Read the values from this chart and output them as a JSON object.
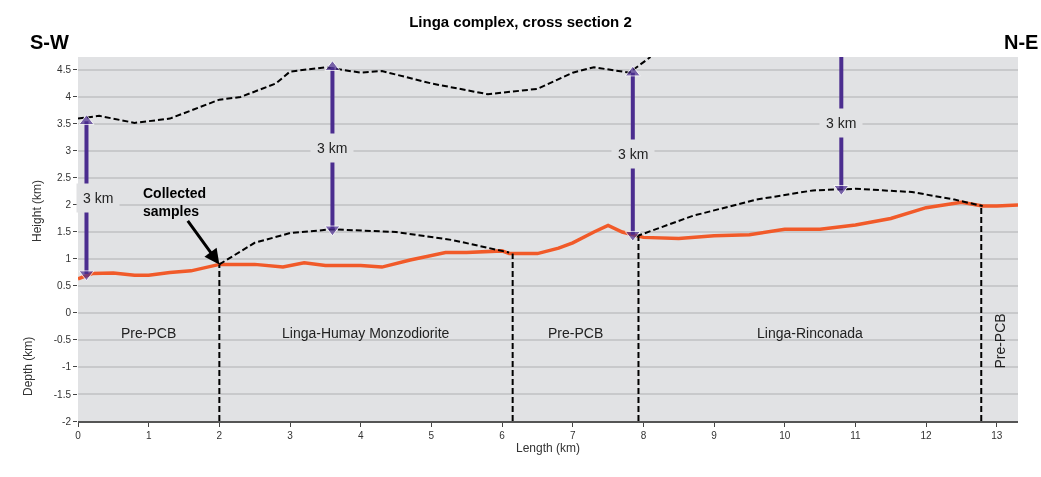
{
  "chart_data": {
    "type": "line",
    "title": "Linga complex, cross section 2",
    "xlabel": "Length (km)",
    "ylabel": "Height (km)",
    "xlim": [
      0,
      13.3
    ],
    "xticks": [
      0,
      1,
      2,
      3,
      4,
      5,
      6,
      7,
      8,
      9,
      10,
      11,
      12,
      13
    ],
    "ylim": [
      -2,
      4.74
    ],
    "yticks": [
      -2,
      -1.5,
      -1,
      -0.5,
      0,
      0.5,
      1,
      1.5,
      2,
      2.5,
      3,
      3.5,
      4,
      4.5
    ],
    "grid": "y",
    "legend": false,
    "series": [
      {
        "color": "#f15a29",
        "line_style": "solid",
        "x": [
          0,
          0.2,
          0.5,
          0.8,
          1.0,
          1.3,
          1.6,
          2.0,
          2.5,
          2.9,
          3.2,
          3.5,
          4.0,
          4.3,
          4.7,
          5.2,
          5.5,
          6.0,
          6.1,
          6.5,
          6.8,
          7.0,
          7.3,
          7.5,
          7.7,
          8.0,
          8.5,
          9.0,
          9.5,
          10.0,
          10.5,
          11.0,
          11.5,
          12.0,
          12.5,
          12.8,
          13.0,
          13.3
        ],
        "values": [
          0.63,
          0.73,
          0.74,
          0.7,
          0.7,
          0.75,
          0.78,
          0.9,
          0.9,
          0.85,
          0.93,
          0.88,
          0.88,
          0.85,
          0.98,
          1.12,
          1.12,
          1.15,
          1.1,
          1.1,
          1.2,
          1.3,
          1.5,
          1.62,
          1.5,
          1.4,
          1.38,
          1.43,
          1.45,
          1.55,
          1.55,
          1.63,
          1.75,
          1.95,
          2.05,
          1.98,
          1.98,
          2.0
        ]
      },
      {
        "color": "#000000",
        "line_style": "dashed",
        "x": [
          0,
          0.3,
          0.8,
          1.3,
          2.0,
          2.3,
          2.8,
          3.0,
          3.5,
          4.0,
          4.3,
          5.0,
          5.8,
          6.5,
          7.0,
          7.3,
          7.8,
          8.1
        ],
        "values": [
          3.6,
          3.65,
          3.52,
          3.6,
          3.95,
          4.0,
          4.25,
          4.47,
          4.55,
          4.45,
          4.48,
          4.25,
          4.05,
          4.15,
          4.45,
          4.55,
          4.45,
          4.74
        ]
      },
      {
        "color": "#000000",
        "line_style": "dashed",
        "x": [
          2.0,
          2.5,
          3.0,
          3.6,
          4.5,
          5.3,
          6.1
        ],
        "values": [
          0.9,
          1.3,
          1.48,
          1.55,
          1.5,
          1.35,
          1.12
        ]
      },
      {
        "color": "#000000",
        "line_style": "dashed",
        "x": [
          7.9,
          8.7,
          9.6,
          10.4,
          11.0,
          11.8,
          12.4,
          12.8
        ],
        "values": [
          1.42,
          1.8,
          2.1,
          2.27,
          2.3,
          2.24,
          2.1,
          1.98
        ]
      },
      {
        "color": "#000000",
        "line_style": "dashed",
        "x": [
          2.0,
          2.0
        ],
        "values": [
          -2,
          0.9
        ]
      },
      {
        "color": "#000000",
        "line_style": "dashed",
        "x": [
          6.15,
          6.15
        ],
        "values": [
          -2,
          1.1
        ]
      },
      {
        "color": "#000000",
        "line_style": "dashed",
        "x": [
          7.93,
          7.93
        ],
        "values": [
          -2,
          1.42
        ]
      },
      {
        "color": "#000000",
        "line_style": "dashed",
        "x": [
          12.78,
          12.78
        ],
        "values": [
          -2,
          1.98
        ]
      },
      {
        "name": "3 km",
        "color": "#4b2d8f",
        "line_style": "solid",
        "marker": "triangle",
        "x": [
          0.12,
          0.12
        ],
        "values": [
          0.72,
          3.55
        ]
      },
      {
        "name": "3 km",
        "color": "#4b2d8f",
        "line_style": "solid",
        "marker": "triangle",
        "x": [
          3.6,
          3.6
        ],
        "values": [
          1.55,
          4.55
        ]
      },
      {
        "name": "3 km",
        "color": "#4b2d8f",
        "line_style": "solid",
        "marker": "triangle",
        "x": [
          7.85,
          7.85
        ],
        "values": [
          1.45,
          4.45
        ]
      },
      {
        "name": "3 km",
        "color": "#4b2d8f",
        "line_style": "solid",
        "marker": "triangle",
        "x": [
          10.8,
          10.8
        ],
        "values": [
          2.3,
          4.74
        ]
      }
    ],
    "annotations": [
      "S-W",
      "N-E",
      "Depth (km)",
      {
        "text": "Collected samples",
        "x": 2.0,
        "y": 0.9
      },
      "Pre-PCB",
      "Linga-Humay Monzodiorite",
      "Pre-PCB",
      "Linga-Rinconada",
      "Pre-PCB"
    ]
  }
}
